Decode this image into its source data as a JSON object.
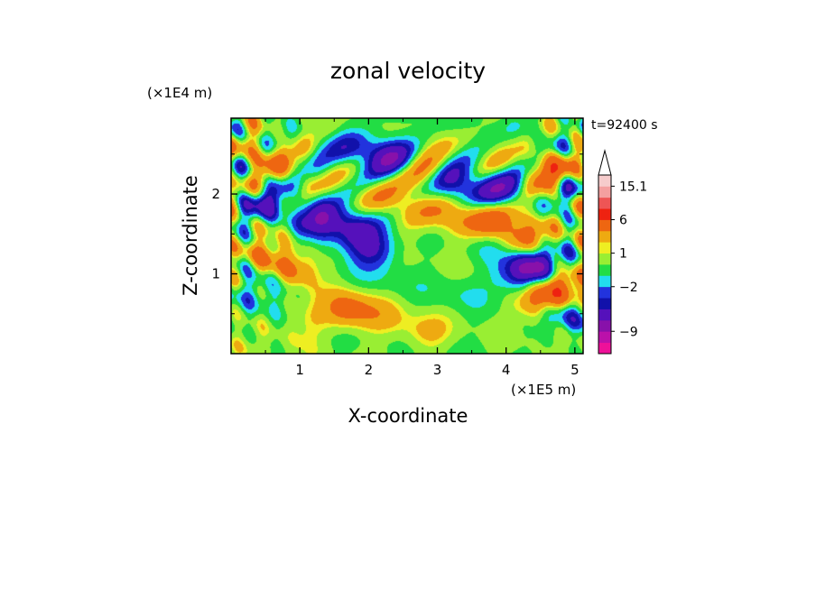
{
  "chart_data": {
    "type": "heatmap",
    "title": "zonal velocity",
    "xlabel": "X-coordinate",
    "ylabel": "Z-coordinate",
    "x_unit": "(×1E5 m)",
    "y_unit": "(×1E4 m)",
    "time_label": "t=92400 s",
    "xlim": [
      0,
      5.12
    ],
    "ylim": [
      0,
      2.95
    ],
    "x_ticks": [
      1,
      2,
      3,
      4,
      5
    ],
    "y_ticks": [
      1,
      2
    ],
    "x_tick_labels": [
      "1",
      "2",
      "3",
      "4",
      "5"
    ],
    "y_tick_labels": [
      "1",
      "2"
    ],
    "colorbar": {
      "colors": [
        "#ee1199",
        "#bb11aa",
        "#8811aa",
        "#5511bb",
        "#1111aa",
        "#2233dd",
        "#22ddee",
        "#22dd44",
        "#99ee33",
        "#eeee22",
        "#eeaa11",
        "#ee6611",
        "#ee2211",
        "#ee5555",
        "#f4a0a0",
        "#f6cccc"
      ],
      "labels": [
        {
          "text": "15.1",
          "value": 15.1
        },
        {
          "text": "6",
          "value": 6
        },
        {
          "text": "1",
          "value": 1
        },
        {
          "text": "−2",
          "value": -2
        },
        {
          "text": "−9",
          "value": -9
        }
      ],
      "extend": "max"
    },
    "features": [
      {
        "x": 0.4,
        "z": 1.25,
        "value": 3
      },
      {
        "x": 0.9,
        "z": 1.05,
        "value": 4
      },
      {
        "x": 1.7,
        "z": 0.55,
        "value": 4
      },
      {
        "x": 2.9,
        "z": 2.25,
        "value": 2.5
      },
      {
        "x": 3.2,
        "z": 1.7,
        "value": 3
      },
      {
        "x": 3.8,
        "z": 1.65,
        "value": 4.5
      },
      {
        "x": 4.3,
        "z": 1.4,
        "value": 4
      },
      {
        "x": 4.5,
        "z": 0.7,
        "value": 5
      },
      {
        "x": 4.8,
        "z": 0.85,
        "value": 4
      },
      {
        "x": 0.5,
        "z": 2.5,
        "value": 3
      },
      {
        "x": 4.6,
        "z": 2.3,
        "value": 3
      },
      {
        "x": 1.3,
        "z": 1.65,
        "value": -5
      },
      {
        "x": 1.8,
        "z": 1.55,
        "value": -4
      },
      {
        "x": 2.05,
        "z": 1.3,
        "value": -4
      },
      {
        "x": 2.3,
        "z": 2.5,
        "value": -4
      },
      {
        "x": 1.85,
        "z": 2.55,
        "value": -3
      },
      {
        "x": 3.28,
        "z": 2.1,
        "value": -4.5
      },
      {
        "x": 3.85,
        "z": 2.05,
        "value": -4
      },
      {
        "x": 4.45,
        "z": 1.1,
        "value": -4.5
      },
      {
        "x": 4.25,
        "z": 1.05,
        "value": -4
      },
      {
        "x": 0.55,
        "z": 1.8,
        "value": -3
      },
      {
        "x": 0.5,
        "z": 0.85,
        "value": -3
      },
      {
        "x": 4.9,
        "z": 0.5,
        "value": -3
      },
      {
        "x": 3.3,
        "z": 0.75,
        "value": -0.8
      },
      {
        "x": 2.3,
        "z": 0.9,
        "value": -0.5
      },
      {
        "x": 4.3,
        "z": 0.9,
        "value": -1.5
      },
      {
        "x": 3.7,
        "z": 1.35,
        "value": -1.2
      },
      {
        "x": 2.8,
        "z": 0.25,
        "value": 1.8
      },
      {
        "x": 1.0,
        "z": 0.35,
        "value": 1.5
      },
      {
        "x": 2.2,
        "z": 0.45,
        "value": 1.5
      },
      {
        "x": 2.2,
        "z": 1.9,
        "value": 2
      },
      {
        "x": 2.7,
        "z": 1.8,
        "value": 1.5
      }
    ]
  }
}
